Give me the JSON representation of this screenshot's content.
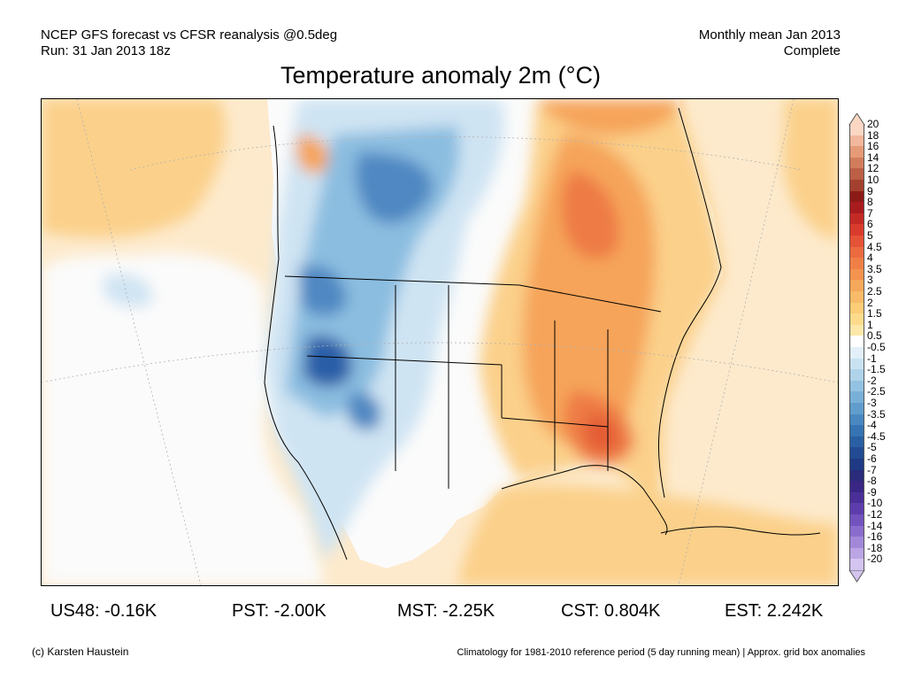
{
  "header": {
    "left_line1": "NCEP GFS forecast vs CFSR reanalysis @0.5deg",
    "left_line2": "Run: 31 Jan 2013 18z",
    "right_line1": "Monthly mean Jan 2013",
    "right_line2": "Complete"
  },
  "title": "Temperature anomaly 2m (°C)",
  "colorbar": {
    "labels": [
      "20",
      "18",
      "16",
      "14",
      "12",
      "10",
      "9",
      "8",
      "7",
      "6",
      "5",
      "4.5",
      "4",
      "3.5",
      "3",
      "2.5",
      "2",
      "1.5",
      "1",
      "0.5",
      "-0.5",
      "-1",
      "-1.5",
      "-2",
      "-2.5",
      "-3",
      "-3.5",
      "-4",
      "-4.5",
      "-5",
      "-6",
      "-7",
      "-8",
      "-9",
      "-10",
      "-12",
      "-14",
      "-16",
      "-18",
      "-20"
    ],
    "colors": [
      "#fbd7c4",
      "#f2b79c",
      "#e59a78",
      "#d17d5c",
      "#bb5f45",
      "#a4402f",
      "#8c1a17",
      "#a81c1e",
      "#c32a26",
      "#d93b2c",
      "#e55336",
      "#ec6a3f",
      "#f07f47",
      "#f3934f",
      "#f6a85a",
      "#f9bb67",
      "#fbcd77",
      "#fcdc8c",
      "#fde8aa",
      "#ffffff",
      "#e2eff8",
      "#c9e2f1",
      "#afd3ea",
      "#94c2e2",
      "#79b0d8",
      "#609dcd",
      "#4988c0",
      "#3673b2",
      "#2a5fa3",
      "#224b93",
      "#1e3a84",
      "#2a2b7a",
      "#3a2685",
      "#4b2f98",
      "#5d3dac",
      "#7352be",
      "#8a6ccd",
      "#a388da",
      "#bba5e5",
      "#d3c4f0"
    ]
  },
  "stats": [
    {
      "label": "US48: -0.16K"
    },
    {
      "label": "PST: -2.00K"
    },
    {
      "label": "MST: -2.25K"
    },
    {
      "label": "CST: 0.804K"
    },
    {
      "label": "EST: 2.242K"
    }
  ],
  "footer": {
    "left": "(c) Karsten Haustein",
    "right": "Climatology for 1981-2010 reference period (5 day running mean) | Approx. grid box anomalies"
  },
  "map_colors": {
    "ocean_warm": "#fdeacc",
    "neutral": "#fbfbfb",
    "cold_light": "#cfe4f3",
    "cold_mid": "#8bbde0",
    "cold_strong": "#4f88c2",
    "cold_deep": "#2b5ea7",
    "warm_light": "#fbd08a",
    "warm_mid": "#f6a45a",
    "warm_strong": "#ee7a45",
    "warm_deep": "#e35b34"
  }
}
